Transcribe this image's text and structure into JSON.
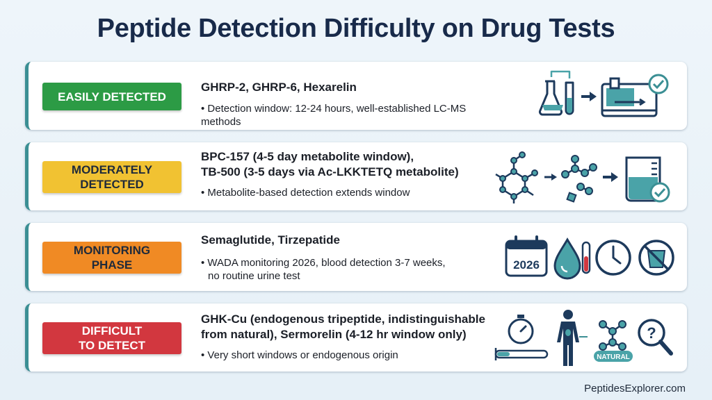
{
  "title": "Peptide Detection Difficulty on Drug Tests",
  "rows": [
    {
      "badge_lines": [
        "EASILY DETECTED"
      ],
      "head_lines": [
        "GHRP-2, GHRP-6, Hexarelin"
      ],
      "bullet_lines": [
        "• Detection window: 12-24 hours, well-established LC-MS methods"
      ]
    },
    {
      "badge_lines": [
        "MODERATELY",
        "DETECTED"
      ],
      "head_lines": [
        "BPC-157 (4-5 day metabolite window),",
        "TB-500 (3-5 days via Ac-LKKTETQ metabolite)"
      ],
      "bullet_lines": [
        "• Metabolite-based detection extends window"
      ]
    },
    {
      "badge_lines": [
        "MONITORING",
        "PHASE"
      ],
      "head_lines": [
        "Semaglutide, Tirzepatide"
      ],
      "bullet_lines": [
        "• WADA monitoring 2026, blood detection 3-7 weeks,",
        "no routine urine test"
      ],
      "icon_calendar_text": "2026"
    },
    {
      "badge_lines": [
        "DIFFICULT",
        "TO DETECT"
      ],
      "head_lines": [
        "GHK-Cu (endogenous tripeptide, indistinguishable",
        "from natural), Sermorelin (4-12 hr window only)"
      ],
      "bullet_lines": [
        "• Very short windows or endogenous origin"
      ],
      "icon_natural_label": "NATURAL"
    }
  ],
  "icons": {
    "row1": [
      "lab-flasks-icon",
      "arrow-right-icon",
      "lc-ms-machine-icon",
      "check-circle-icon"
    ],
    "row2": [
      "molecule-network-icon",
      "arrow-right-icon",
      "metabolite-fragments-icon",
      "arrow-right-icon",
      "beaker-check-icon"
    ],
    "row3": [
      "calendar-icon",
      "blood-drop-vial-icon",
      "clock-icon",
      "no-urine-cup-icon"
    ],
    "row4": [
      "stopwatch-icon",
      "human-body-icon",
      "natural-molecule-icon",
      "magnifier-question-icon"
    ]
  },
  "colors": {
    "green": "#2c9b45",
    "yellow": "#f1c232",
    "orange": "#f08a24",
    "red": "#d2373f",
    "icon_dark": "#1d3a5c",
    "icon_teal": "#3b8f94"
  },
  "footer": "PeptidesExplorer.com"
}
